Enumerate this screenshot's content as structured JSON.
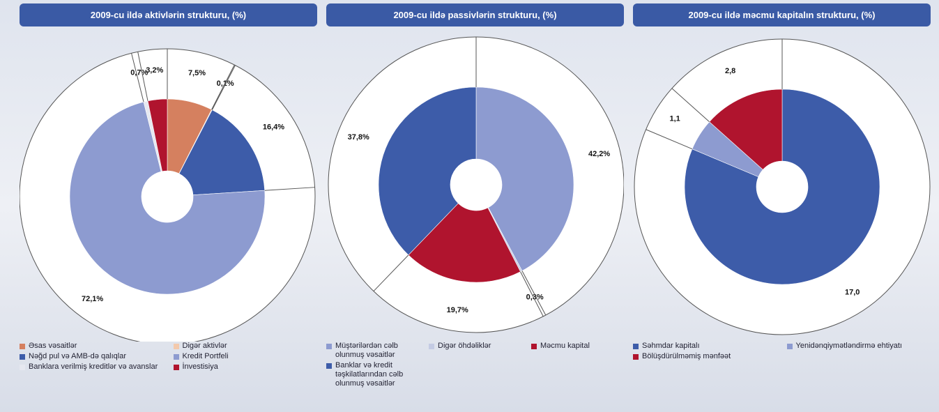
{
  "chart_data": [
    {
      "type": "pie",
      "title": "2009-cu ildə aktivlərin strukturu, (%)",
      "categories": [
        "Əsas vəsaitlər",
        "Digər aktivlər",
        "Nəğd pul və AMB-də qalıqlar",
        "Kredit Portfeli",
        "Banklara verilmiş kreditlər və avanslar",
        "İnvestisiya"
      ],
      "values": [
        7.5,
        0.1,
        16.4,
        72.1,
        0.7,
        3.2
      ],
      "value_labels": [
        "7,5%",
        "0,1%",
        "16,4%",
        "72,1%",
        "0,7%",
        "3,2%"
      ],
      "colors": [
        "#d5805f",
        "#f3c9ac",
        "#3d5ca9",
        "#8d9bd0",
        "#e6e8f0",
        "#b0142e"
      ]
    },
    {
      "type": "pie",
      "title": "2009-cu ildə passivlərin strukturu, (%)",
      "categories": [
        "Müştərilərdən cəlb olunmuş vəsaitlər",
        "Digər öhdəliklər",
        "Məcmu kapital",
        "Banklar və kredit təşkilatlarından cəlb olunmuş vəsaitlər"
      ],
      "values": [
        42.2,
        0.3,
        19.7,
        37.8
      ],
      "value_labels": [
        "42,2%",
        "0,3%",
        "19,7%",
        "37,8%"
      ],
      "colors": [
        "#8d9bd0",
        "#c4cbe3",
        "#b0142e",
        "#3d5ca9"
      ]
    },
    {
      "type": "pie",
      "title": "2009-cu ildə məcmu kapitalın strukturu, (%)",
      "categories": [
        "Səhmdar kapitalı",
        "Yenidənqiymətləndirmə ehtiyatı",
        "Bölüşdürülməmiş mənfəət"
      ],
      "values": [
        17.0,
        1.1,
        2.8
      ],
      "value_labels": [
        "17,0",
        "1,1",
        "2,8"
      ],
      "colors": [
        "#3d5ca9",
        "#8d9bd0",
        "#b0142e"
      ]
    }
  ]
}
